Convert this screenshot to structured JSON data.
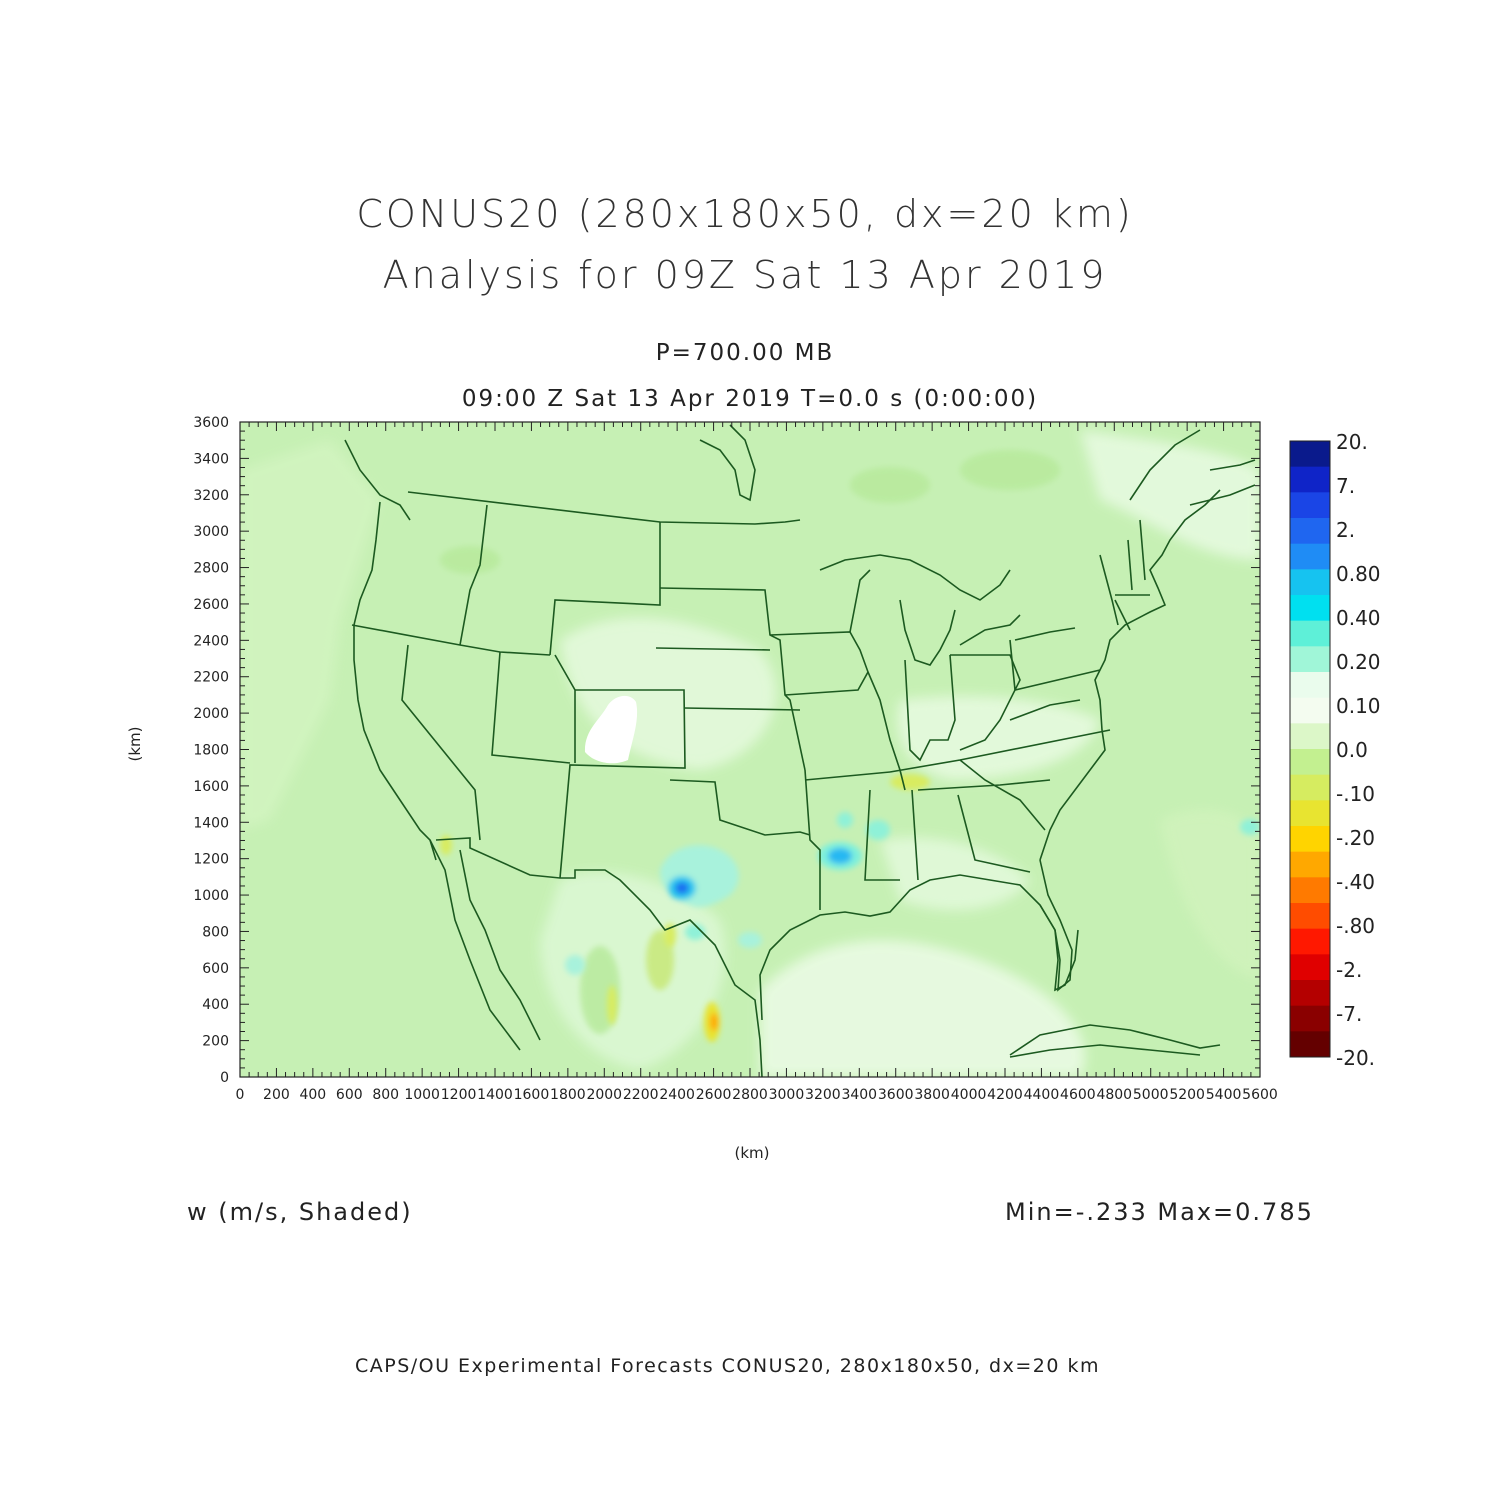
{
  "titles": {
    "line1": "CONUS20 (280x180x50, dx=20 km)",
    "line2": "Analysis for 09Z Sat 13 Apr 2019",
    "level": "P=700.00 MB",
    "valid_time": "09:00 Z Sat 13 Apr 2019    T=0.0 s (0:00:00)",
    "variable": "w (m/s, Shaded)",
    "minmax": "Min=-.233 Max=0.785",
    "footer": "CAPS/OU Experimental Forecasts  CONUS20, 280x180x50, dx=20 km"
  },
  "axes": {
    "x_unit": "(km)",
    "y_unit": "(km)",
    "x_range": [
      0,
      5600
    ],
    "y_range": [
      0,
      3600
    ],
    "x_ticks": [
      "0",
      "200",
      "400",
      "600",
      "800",
      "1000",
      "1200",
      "1400",
      "1600",
      "1800",
      "2000",
      "2200",
      "2400",
      "2600",
      "2800",
      "3000",
      "3200",
      "3400",
      "3600",
      "3800",
      "4000",
      "4200",
      "4400",
      "4600",
      "4800",
      "5000",
      "5200",
      "5400",
      "5600"
    ],
    "y_ticks": [
      "0",
      "200",
      "400",
      "600",
      "800",
      "1000",
      "1200",
      "1400",
      "1600",
      "1800",
      "2000",
      "2200",
      "2400",
      "2600",
      "2800",
      "3000",
      "3200",
      "3400",
      "3600"
    ]
  },
  "colorbar": {
    "labels": [
      "20.",
      "7.",
      "2.",
      "0.80",
      "0.40",
      "0.20",
      "0.10",
      "0.0",
      "-.10",
      "-.20",
      "-.40",
      "-.80",
      "-2.",
      "-7.",
      "-20."
    ],
    "colors": [
      "#0a1a8c",
      "#0f24c8",
      "#1a45e6",
      "#1f66f0",
      "#1f8cf5",
      "#16c3f0",
      "#00e0f0",
      "#5ef0d8",
      "#a0f6d8",
      "#eafced",
      "#f4fcf0",
      "#dcf7c8",
      "#c3f090",
      "#d6ec60",
      "#e8e430",
      "#ffd400",
      "#ffa800",
      "#ff7a00",
      "#ff4c00",
      "#ff1800",
      "#e00000",
      "#b40000",
      "#8a0000",
      "#640000"
    ]
  },
  "map": {
    "background_color": "#c4f0b0",
    "border_color": "#1c5a20",
    "features": {
      "white_patch_label": "",
      "max_center": "",
      "min_center": ""
    }
  }
}
